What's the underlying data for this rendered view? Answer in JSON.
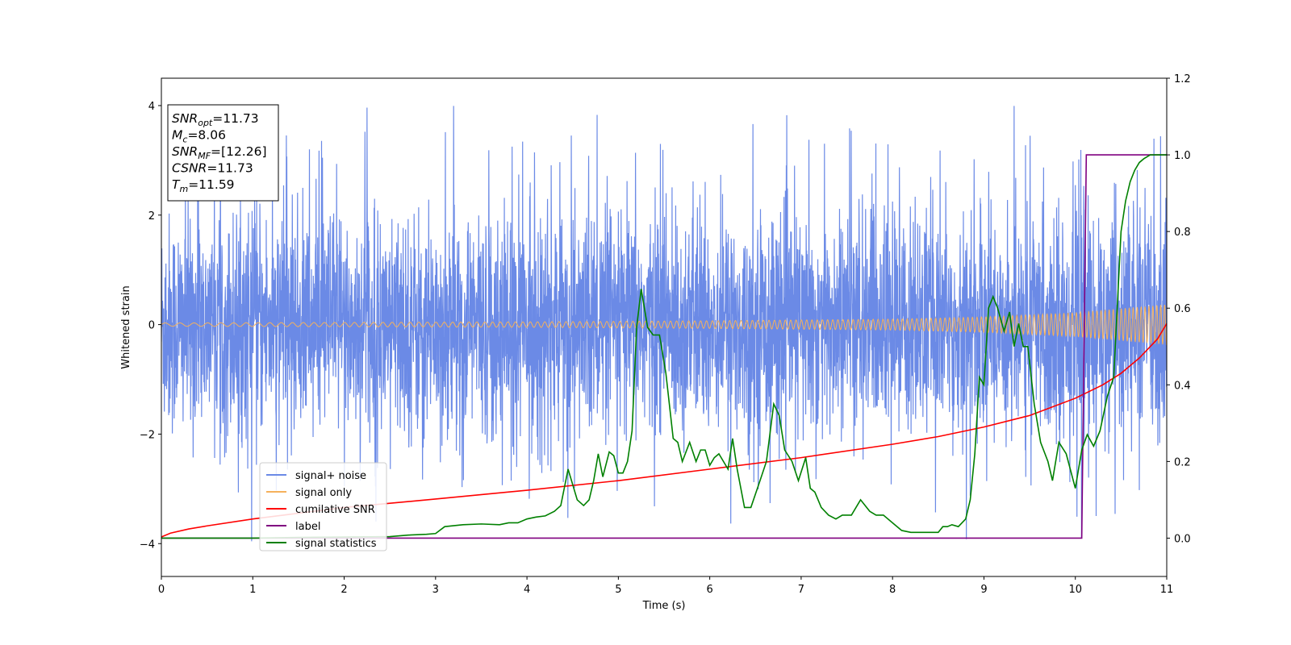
{
  "chart_data": {
    "type": "line",
    "xlabel": "Time (s)",
    "ylabel": "Whitened strain",
    "xlim": [
      0,
      11
    ],
    "ylim_left": [
      -4.6,
      4.5
    ],
    "ylim_right": [
      -0.1,
      1.2
    ],
    "x_ticks": [
      "0",
      "1",
      "2",
      "3",
      "4",
      "5",
      "6",
      "7",
      "8",
      "9",
      "10",
      "11"
    ],
    "y_ticks_left": [
      "−4",
      "−2",
      "0",
      "2",
      "4"
    ],
    "y_ticks_right": [
      "0.0",
      "0.2",
      "0.4",
      "0.6",
      "0.8",
      "1.0",
      "1.2"
    ],
    "grid": false,
    "legend_position": "lower-left",
    "annotation": {
      "lines": [
        {
          "base": "SNR",
          "sub": "opt",
          "rest": "=11.73"
        },
        {
          "base": "M",
          "sub": "c",
          "rest": "=8.06"
        },
        {
          "base": "SNR",
          "sub": "MF",
          "rest": "=[12.26]"
        },
        {
          "base": "CSNR",
          "sub": "",
          "rest": "=11.73"
        },
        {
          "base": "T",
          "sub": "m",
          "rest": "=11.59"
        }
      ]
    },
    "series": [
      {
        "name": "signal+ noise",
        "axis": "left",
        "color": "#6b8ae6",
        "kind": "noise",
        "typical_std": 1.0,
        "spike_max": 4.1,
        "spike_min": -4.2
      },
      {
        "name": "signal only",
        "axis": "left",
        "color": "#f5b15c",
        "kind": "chirp",
        "envelope": {
          "x": [
            0,
            2,
            4,
            6,
            8,
            9,
            10,
            11
          ],
          "y": [
            0.03,
            0.04,
            0.05,
            0.07,
            0.1,
            0.14,
            0.22,
            0.37
          ]
        }
      },
      {
        "name": "cumilative SNR",
        "axis": "right",
        "color": "#ff0000",
        "x": [
          0,
          0.1,
          0.3,
          0.5,
          1,
          2,
          3,
          4,
          5,
          6,
          7,
          8,
          8.5,
          9,
          9.5,
          10,
          10.3,
          10.5,
          10.7,
          10.9,
          11
        ],
        "y": [
          0.003,
          0.013,
          0.024,
          0.032,
          0.05,
          0.08,
          0.102,
          0.125,
          0.15,
          0.18,
          0.21,
          0.245,
          0.265,
          0.29,
          0.32,
          0.365,
          0.4,
          0.43,
          0.47,
          0.52,
          0.56
        ]
      },
      {
        "name": "label",
        "axis": "right",
        "color": "#800080",
        "x": [
          0,
          10.07,
          10.12,
          11
        ],
        "y": [
          0,
          0,
          1,
          1
        ]
      },
      {
        "name": "signal statistics",
        "axis": "right",
        "color": "#008000",
        "x": [
          0,
          0.5,
          1,
          1.5,
          2,
          2.5,
          2.7,
          2.9,
          3.0,
          3.1,
          3.3,
          3.5,
          3.7,
          3.8,
          3.9,
          4.0,
          4.1,
          4.2,
          4.3,
          4.37,
          4.45,
          4.55,
          4.62,
          4.68,
          4.73,
          4.78,
          4.83,
          4.9,
          4.95,
          5.0,
          5.05,
          5.1,
          5.15,
          5.2,
          5.25,
          5.32,
          5.38,
          5.45,
          5.52,
          5.6,
          5.65,
          5.7,
          5.78,
          5.85,
          5.9,
          5.95,
          6.0,
          6.05,
          6.1,
          6.15,
          6.2,
          6.25,
          6.3,
          6.38,
          6.45,
          6.55,
          6.62,
          6.7,
          6.76,
          6.82,
          6.9,
          6.97,
          7.05,
          7.1,
          7.15,
          7.22,
          7.3,
          7.38,
          7.45,
          7.55,
          7.65,
          7.75,
          7.82,
          7.9,
          8.0,
          8.05,
          8.1,
          8.2,
          8.3,
          8.4,
          8.5,
          8.55,
          8.6,
          8.65,
          8.72,
          8.8,
          8.85,
          8.9,
          8.95,
          9.0,
          9.05,
          9.1,
          9.15,
          9.22,
          9.28,
          9.33,
          9.38,
          9.43,
          9.48,
          9.55,
          9.62,
          9.7,
          9.75,
          9.82,
          9.9,
          10.0,
          10.07,
          10.13,
          10.2,
          10.27,
          10.35,
          10.42,
          10.5,
          10.55,
          10.6,
          10.65,
          10.7,
          10.75,
          10.82,
          10.9,
          11.0
        ],
        "y": [
          0,
          0.0,
          0.0,
          0.002,
          0.003,
          0.004,
          0.008,
          0.01,
          0.012,
          0.03,
          0.035,
          0.037,
          0.035,
          0.04,
          0.04,
          0.05,
          0.055,
          0.058,
          0.07,
          0.085,
          0.18,
          0.1,
          0.085,
          0.1,
          0.15,
          0.22,
          0.16,
          0.225,
          0.215,
          0.17,
          0.17,
          0.2,
          0.28,
          0.55,
          0.65,
          0.55,
          0.53,
          0.53,
          0.43,
          0.26,
          0.25,
          0.2,
          0.25,
          0.2,
          0.23,
          0.23,
          0.19,
          0.21,
          0.22,
          0.2,
          0.18,
          0.26,
          0.18,
          0.08,
          0.08,
          0.15,
          0.2,
          0.35,
          0.32,
          0.23,
          0.2,
          0.15,
          0.21,
          0.13,
          0.12,
          0.08,
          0.06,
          0.05,
          0.06,
          0.06,
          0.1,
          0.07,
          0.06,
          0.06,
          0.04,
          0.03,
          0.02,
          0.015,
          0.015,
          0.015,
          0.015,
          0.03,
          0.03,
          0.035,
          0.03,
          0.05,
          0.1,
          0.22,
          0.42,
          0.4,
          0.6,
          0.63,
          0.6,
          0.54,
          0.59,
          0.5,
          0.56,
          0.5,
          0.5,
          0.35,
          0.25,
          0.2,
          0.15,
          0.25,
          0.22,
          0.13,
          0.23,
          0.27,
          0.24,
          0.28,
          0.37,
          0.42,
          0.8,
          0.88,
          0.93,
          0.96,
          0.98,
          0.99,
          1.0,
          1.0,
          1.0
        ]
      }
    ]
  }
}
